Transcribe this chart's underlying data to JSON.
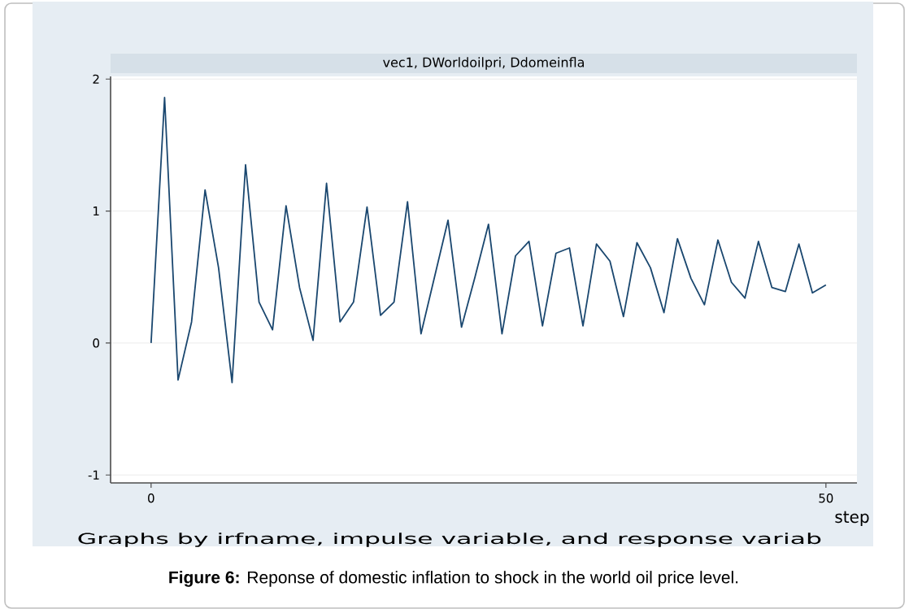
{
  "chart_data": {
    "type": "line",
    "title": "vec1, DWorldoilpri, Ddomeinfla",
    "xlabel": "step",
    "annotations": [
      "Graphs by irfname, impulse variable, and response variab",
      "**Figure 6:** Reponse of domestic inflation to shock in the world oil price level."
    ],
    "x": [
      0,
      1,
      2,
      3,
      4,
      5,
      6,
      7,
      8,
      9,
      10,
      11,
      12,
      13,
      14,
      15,
      16,
      17,
      18,
      19,
      20,
      21,
      22,
      23,
      24,
      25,
      26,
      27,
      28,
      29,
      30,
      31,
      32,
      33,
      34,
      35,
      36,
      37,
      38,
      39,
      40,
      41,
      42,
      43,
      44,
      45,
      46,
      47,
      48,
      49,
      50
    ],
    "series": [
      {
        "color": "#1a476f",
        "values": [
          0,
          1.86,
          -0.28,
          0.16,
          1.16,
          0.57,
          -0.3,
          1.35,
          0.31,
          0.1,
          1.04,
          0.42,
          0.02,
          1.21,
          0.16,
          0.31,
          1.03,
          0.21,
          0.31,
          1.07,
          0.07,
          0.5,
          0.93,
          0.12,
          0.5,
          0.9,
          0.07,
          0.66,
          0.77,
          0.13,
          0.68,
          0.72,
          0.13,
          0.75,
          0.62,
          0.2,
          0.76,
          0.57,
          0.23,
          0.79,
          0.49,
          0.29,
          0.78,
          0.46,
          0.34,
          0.77,
          0.42,
          0.39,
          0.75,
          0.38,
          0.44
        ]
      }
    ],
    "xlim": [
      -3,
      52.3
    ],
    "ylim": [
      -1.06,
      2.02
    ],
    "xticks": [
      0,
      50
    ],
    "yticks": [
      -1,
      0,
      1,
      2
    ],
    "grid": "y",
    "marker": "none",
    "line_style": "solid"
  }
}
